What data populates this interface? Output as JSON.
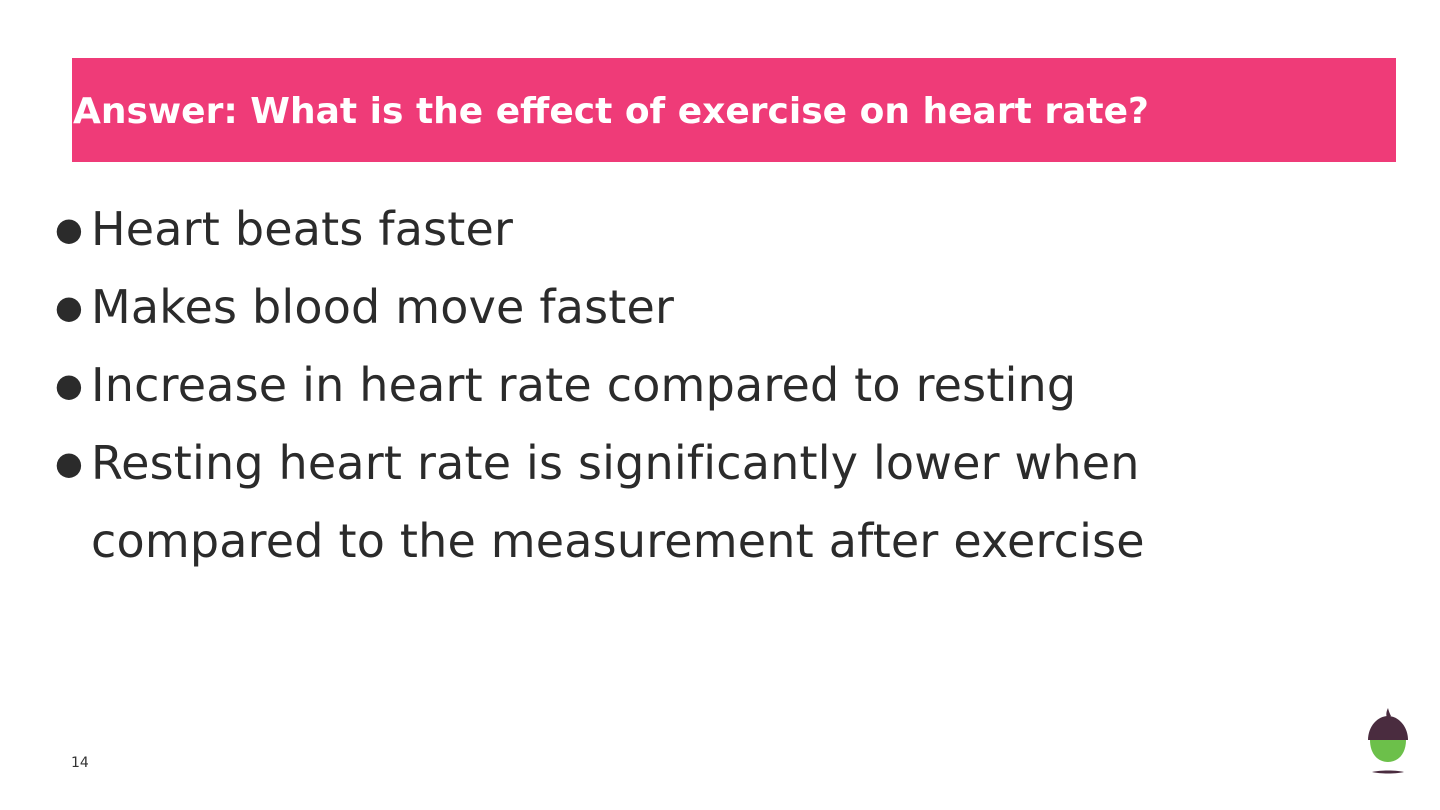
{
  "slide": {
    "title": "Answer: What is the effect of exercise on heart rate?",
    "bullet_glyph": "●",
    "bullets": [
      "Heart beats faster",
      "Makes blood move faster",
      "Increase in heart rate compared to resting",
      "Resting heart rate is significantly lower when compared to the measurement after exercise"
    ],
    "page_number": "14"
  },
  "colors": {
    "title_bar": "#ef3b78",
    "title_text": "#ffffff",
    "body_text": "#2b2b2b",
    "logo_cap": "#4a2c3f",
    "logo_nut": "#6cc04a"
  },
  "logo": {
    "icon": "acorn-logo-icon"
  }
}
